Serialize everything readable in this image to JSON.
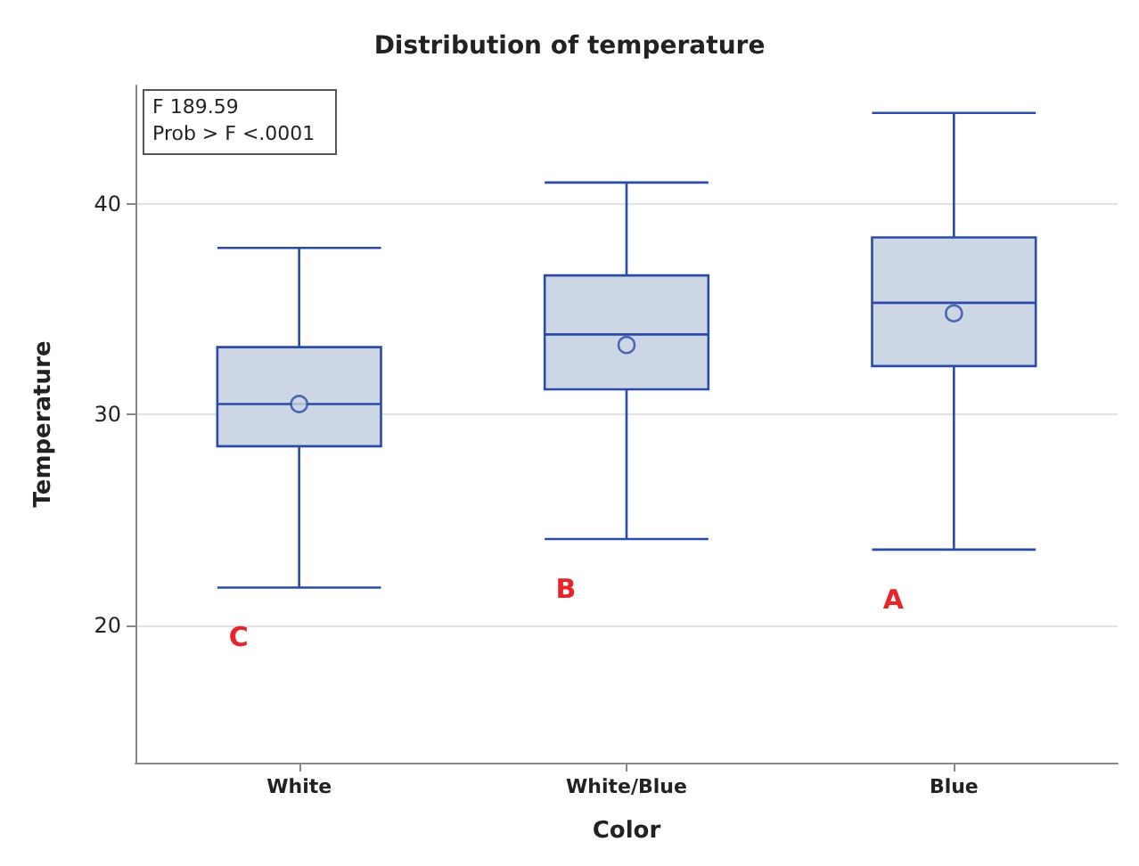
{
  "chart_data": {
    "type": "box",
    "title": "Distribution of temperature",
    "xlabel": "Color",
    "ylabel": "Temperature",
    "categories": [
      "White",
      "White/Blue",
      "Blue"
    ],
    "boxes": [
      {
        "low": 21.8,
        "q1": 28.5,
        "median": 30.5,
        "q3": 33.2,
        "high": 37.9,
        "mean": 30.5
      },
      {
        "low": 24.1,
        "q1": 31.2,
        "median": 33.8,
        "q3": 36.6,
        "high": 41.0,
        "mean": 33.3
      },
      {
        "low": 23.6,
        "q1": 32.3,
        "median": 35.3,
        "q3": 38.4,
        "high": 44.3,
        "mean": 34.8
      }
    ],
    "color": "#2b4ba6",
    "ylim": [
      13.5,
      45.6
    ],
    "yticks": [
      20,
      30,
      40
    ],
    "grid": "y",
    "annotations": [
      "F 189.59",
      "Prob > F <.0001",
      "C",
      "B",
      "A"
    ]
  }
}
